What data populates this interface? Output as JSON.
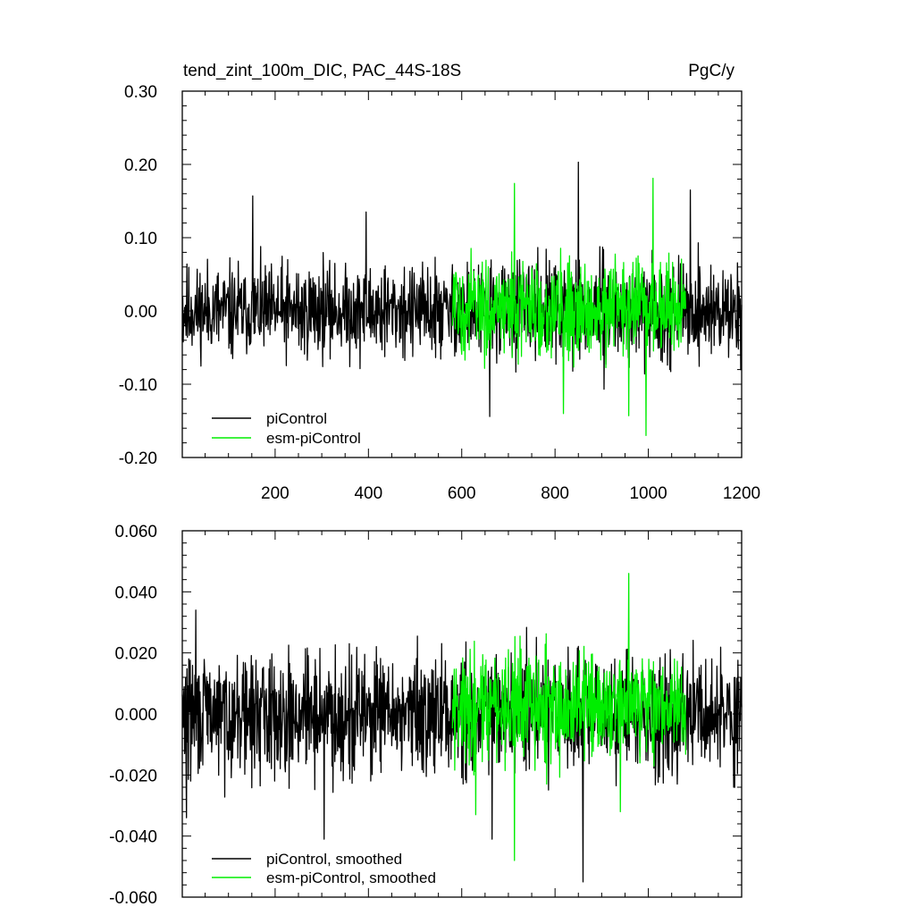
{
  "chart_data": [
    {
      "type": "line",
      "title": "tend_zint_100m_DIC, PAC_44S-18S",
      "units": "PgC/y",
      "xlabel": "",
      "ylabel": "",
      "xlim": [
        1,
        1200
      ],
      "ylim": [
        -0.2,
        0.3
      ],
      "x_ticks": [
        200,
        400,
        600,
        800,
        1000,
        1200
      ],
      "y_ticks": [
        -0.2,
        -0.1,
        0.0,
        0.1,
        0.2,
        0.3
      ],
      "y_tick_labels": [
        "-0.20",
        "-0.10",
        "0.00",
        "0.10",
        "0.20",
        "0.30"
      ],
      "x_tick_labels": [
        "200",
        "400",
        "600",
        "800",
        "1000",
        "1200"
      ],
      "legend_placement": "bottom-left",
      "series": [
        {
          "name": "piControl",
          "color": "#000000",
          "x_range": [
            1,
            1200
          ],
          "values_envelope": {
            "typical_min": -0.1,
            "typical_max": 0.1,
            "min": -0.15,
            "max": 0.2
          },
          "peaks": [
            [
              850,
              0.203
            ],
            [
              152,
              0.157
            ],
            [
              395,
              0.135
            ],
            [
              660,
              -0.144
            ],
            [
              1090,
              0.165
            ]
          ]
        },
        {
          "name": "esm-piControl",
          "color": "#00ee00",
          "x_range": [
            580,
            1080
          ],
          "values_envelope": {
            "typical_min": -0.1,
            "typical_max": 0.11,
            "min": -0.17,
            "max": 0.18
          },
          "peaks": [
            [
              713,
              0.174
            ],
            [
              1010,
              0.181
            ],
            [
              995,
              -0.17
            ],
            [
              958,
              -0.143
            ],
            [
              818,
              -0.14
            ]
          ]
        }
      ]
    },
    {
      "type": "line",
      "title": "",
      "xlabel": "",
      "ylabel": "",
      "xlim": [
        1,
        1200
      ],
      "ylim": [
        -0.06,
        0.06
      ],
      "x_ticks": [
        200,
        400,
        600,
        800,
        1000,
        1200
      ],
      "y_ticks": [
        -0.06,
        -0.04,
        -0.02,
        0.0,
        0.02,
        0.04,
        0.06
      ],
      "y_tick_labels": [
        "-0.060",
        "-0.040",
        "-0.020",
        "0.000",
        "0.020",
        "0.040",
        "0.060"
      ],
      "legend_placement": "bottom-left",
      "series": [
        {
          "name": "piControl, smoothed",
          "color": "#000000",
          "x_range": [
            1,
            1200
          ],
          "values_envelope": {
            "typical_min": -0.03,
            "typical_max": 0.03,
            "min": -0.055,
            "max": 0.034
          },
          "peaks": [
            [
              30,
              0.034
            ],
            [
              860,
              -0.055
            ],
            [
              305,
              -0.041
            ],
            [
              665,
              -0.041
            ],
            [
              10,
              -0.034
            ]
          ]
        },
        {
          "name": "esm-piControl, smoothed",
          "color": "#00ee00",
          "x_range": [
            580,
            1080
          ],
          "values_envelope": {
            "typical_min": -0.025,
            "typical_max": 0.03,
            "min": -0.048,
            "max": 0.046
          },
          "peaks": [
            [
              958,
              0.046
            ],
            [
              713,
              -0.048
            ],
            [
              630,
              -0.033
            ],
            [
              940,
              -0.032
            ]
          ]
        }
      ]
    }
  ]
}
